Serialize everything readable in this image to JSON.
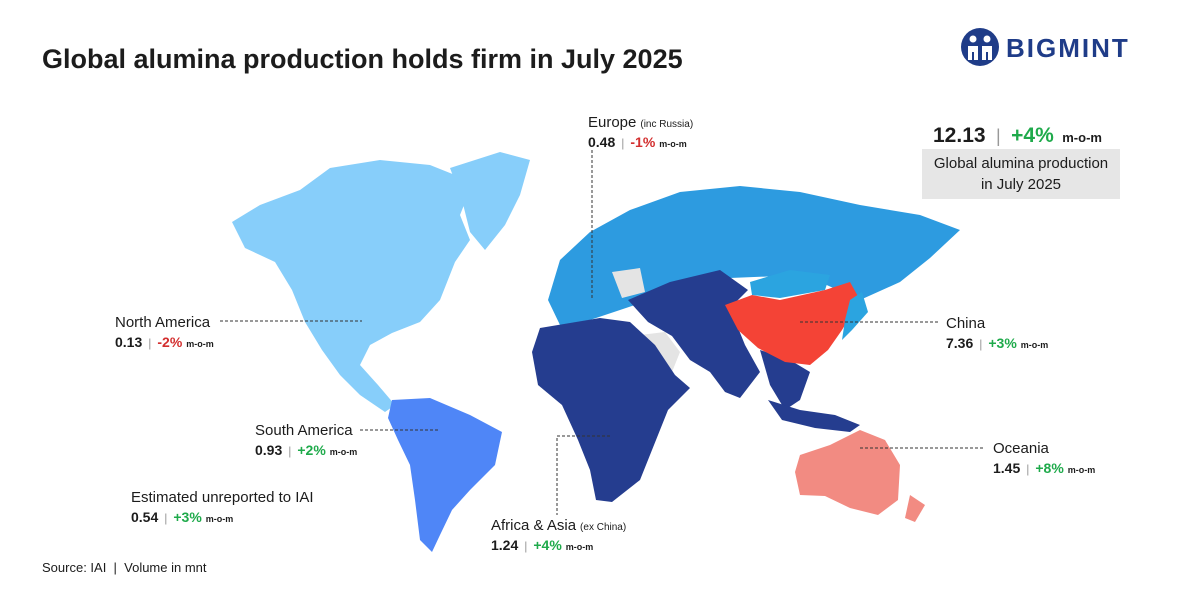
{
  "header": {
    "title": "Global alumina production holds firm in July 2025",
    "logo": "BIGMINT"
  },
  "summary": {
    "value": "12.13",
    "change": "+4%",
    "unit": "m-o-m",
    "caption_lines": [
      "Global alumina production",
      "in July 2025"
    ]
  },
  "regions": [
    {
      "name": "Europe",
      "note": "(inc Russia)",
      "value": "0.48",
      "change": "-1%",
      "unit": "m-o-m"
    },
    {
      "name": "North America",
      "value": "0.13",
      "change": "-2%",
      "unit": "m-o-m"
    },
    {
      "name": "China",
      "value": "7.36",
      "change": "+3%",
      "unit": "m-o-m"
    },
    {
      "name": "South America",
      "value": "0.93",
      "change": "+2%",
      "unit": "m-o-m"
    },
    {
      "name": "Estimated unreported to IAI",
      "value": "0.54",
      "change": "+3%",
      "unit": "m-o-m"
    },
    {
      "name": "Africa & Asia",
      "note": "(ex China)",
      "value": "1.24",
      "change": "+4%",
      "unit": "m-o-m"
    },
    {
      "name": "Oceania",
      "value": "1.45",
      "change": "+8%",
      "unit": "m-o-m"
    }
  ],
  "footer": "Source: IAI  |  Volume in mnt"
}
